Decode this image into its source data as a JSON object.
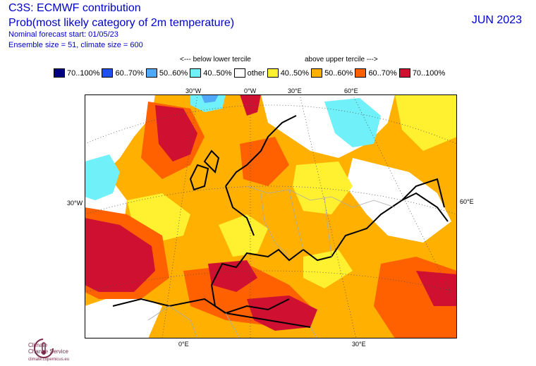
{
  "header": {
    "title": "C3S: ECMWF contribution",
    "subtitle": "Prob(most likely category of 2m temperature)",
    "forecast_start": "Nominal forecast start: 01/05/23",
    "ensemble": "Ensemble size = 51, climate size = 600",
    "month": "JUN 2023"
  },
  "tercile": {
    "below": "<--- below lower tercile",
    "above": "above upper tercile --->"
  },
  "legend": [
    {
      "label": "70..100%",
      "color": "#000080"
    },
    {
      "label": "60..70%",
      "color": "#2050f0"
    },
    {
      "label": "50..60%",
      "color": "#50a8f8"
    },
    {
      "label": "40..50%",
      "color": "#70f0f8"
    },
    {
      "label": "other",
      "color": "#ffffff"
    },
    {
      "label": "40..50%",
      "color": "#fff030"
    },
    {
      "label": "50..60%",
      "color": "#ffb000"
    },
    {
      "label": "60..70%",
      "color": "#ff6000"
    },
    {
      "label": "70..100%",
      "color": "#d01030"
    }
  ],
  "map_labels": {
    "lon_30w": "30°W",
    "lon_0w": "0°W",
    "lon_30e_top": "30°E",
    "lon_60e_top": "60°E",
    "lat_30w": "30°W",
    "lat_60e": "60°E",
    "lon_0e_bottom": "0°E",
    "lon_30e_bottom": "30°E"
  },
  "logo": {
    "name_line1": "Climate",
    "name_line2": "Change Service",
    "url": "climate.copernicus.eu"
  }
}
